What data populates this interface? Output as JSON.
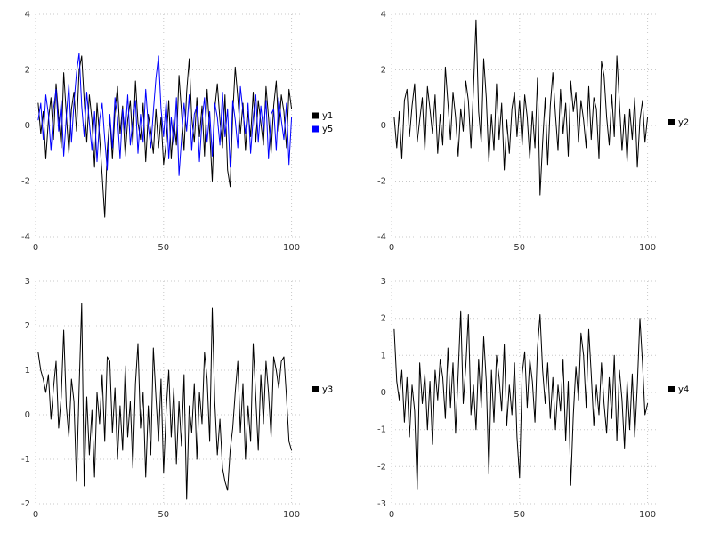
{
  "page": {
    "background": "#ffffff",
    "grid_color": "#c8c8c8",
    "tick_text_color": "#333333"
  },
  "chart_data": [
    {
      "id": "plot-y1-y5",
      "type": "line",
      "x_start": 1,
      "xlim": [
        0,
        105
      ],
      "ylim": [
        -4,
        4
      ],
      "xticks": [
        0,
        50,
        100
      ],
      "yticks": [
        -4,
        -2,
        0,
        2,
        4
      ],
      "grid": true,
      "legend_position": "right",
      "series": [
        {
          "name": "y1",
          "color": "#000000",
          "values": [
            0.8,
            -0.3,
            0.5,
            -1.2,
            0.2,
            1.0,
            -0.5,
            1.5,
            0.3,
            -0.8,
            1.9,
            0.4,
            -1.0,
            0.6,
            1.2,
            -0.2,
            2.0,
            2.5,
            0.9,
            -0.6,
            1.1,
            0.2,
            -1.5,
            0.8,
            -0.4,
            -1.8,
            -3.3,
            -0.9,
            0.3,
            -1.2,
            0.5,
            1.4,
            -0.3,
            0.7,
            -1.1,
            0.2,
            0.9,
            -0.7,
            1.6,
            0.1,
            -0.5,
            0.8,
            -1.3,
            0.4,
            -0.2,
            -1.0,
            0.6,
            -0.8,
            0.3,
            -1.4,
            -0.6,
            0.9,
            -1.2,
            0.2,
            -0.7,
            1.8,
            0.5,
            -0.9,
            1.2,
            2.4,
            0.3,
            -0.6,
            1.0,
            -0.4,
            0.7,
            -1.1,
            1.3,
            -0.2,
            -2.0,
            0.6,
            1.5,
            0.2,
            -0.8,
            1.1,
            -1.6,
            -2.2,
            0.4,
            2.1,
            1.0,
            -0.3,
            0.8,
            -0.9,
            0.5,
            -0.4,
            1.2,
            -0.6,
            0.9,
            0.1,
            -0.7,
            1.4,
            0.3,
            -1.0,
            0.7,
            1.6,
            -0.2,
            1.1,
            0.5,
            -0.8,
            1.3,
            0.6
          ]
        },
        {
          "name": "y5",
          "color": "#0000ff",
          "values": [
            0.2,
            0.8,
            -0.5,
            1.1,
            0.4,
            -0.9,
            0.6,
            1.3,
            -0.2,
            0.9,
            -1.1,
            0.3,
            1.5,
            -0.6,
            0.8,
            1.9,
            2.6,
            0.7,
            -0.4,
            1.2,
            0.1,
            -0.9,
            0.5,
            -1.3,
            0.2,
            0.8,
            -0.5,
            -1.6,
            0.4,
            -0.8,
            1.0,
            0.3,
            -1.2,
            0.6,
            -0.3,
            1.1,
            -0.7,
            0.2,
            0.9,
            -1.0,
            0.4,
            -0.6,
            1.3,
            0.0,
            -0.8,
            0.5,
            1.7,
            2.5,
            0.6,
            -0.4,
            0.9,
            -1.2,
            0.3,
            -0.7,
            1.0,
            -1.8,
            -0.5,
            0.8,
            -0.2,
            1.1,
            -0.9,
            0.4,
            0.7,
            -1.3,
            0.2,
            1.0,
            -0.6,
            0.5,
            -1.1,
            0.8,
            0.3,
            -0.7,
            1.2,
            -0.4,
            0.6,
            -1.5,
            0.9,
            0.2,
            -0.8,
            1.4,
            0.5,
            -0.3,
            0.8,
            -1.0,
            0.3,
            1.1,
            -0.6,
            0.7,
            -0.2,
            0.9,
            -1.2,
            0.4,
            0.6,
            -0.9,
            1.0,
            0.2,
            -0.5,
            0.8,
            -1.4,
            0.3
          ]
        }
      ]
    },
    {
      "id": "plot-y2",
      "type": "line",
      "x_start": 1,
      "xlim": [
        0,
        105
      ],
      "ylim": [
        -4,
        4
      ],
      "xticks": [
        0,
        50,
        100
      ],
      "yticks": [
        -4,
        -2,
        0,
        2,
        4
      ],
      "grid": true,
      "legend_position": "right",
      "series": [
        {
          "name": "y2",
          "color": "#000000",
          "values": [
            0.3,
            -0.8,
            0.5,
            -1.2,
            0.9,
            1.3,
            -0.4,
            0.7,
            1.5,
            -0.6,
            0.2,
            1.0,
            -0.9,
            1.4,
            0.6,
            -0.3,
            1.1,
            -1.0,
            0.4,
            -0.7,
            2.1,
            0.8,
            -0.5,
            1.2,
            0.3,
            -1.1,
            0.6,
            -0.2,
            1.6,
            0.9,
            -0.8,
            1.3,
            3.8,
            0.5,
            -0.6,
            2.4,
            1.0,
            -1.3,
            0.4,
            -0.9,
            1.5,
            -0.5,
            0.8,
            -1.6,
            0.2,
            -1.0,
            0.6,
            1.2,
            -0.4,
            0.9,
            -0.7,
            1.1,
            0.3,
            -1.2,
            0.5,
            -0.8,
            1.7,
            -2.5,
            -0.6,
            1.0,
            -1.4,
            0.7,
            1.9,
            0.4,
            -0.9,
            1.3,
            -0.3,
            0.8,
            -1.1,
            1.6,
            0.5,
            1.2,
            -0.6,
            0.9,
            0.2,
            -0.8,
            1.4,
            -0.5,
            1.0,
            0.6,
            -1.2,
            2.3,
            1.8,
            0.3,
            -0.7,
            1.1,
            -0.4,
            2.5,
            0.8,
            -0.9,
            0.4,
            -1.3,
            0.6,
            -0.5,
            1.0,
            -1.5,
            0.2,
            0.9,
            -0.6,
            0.3
          ]
        }
      ]
    },
    {
      "id": "plot-y3",
      "type": "line",
      "x_start": 1,
      "xlim": [
        0,
        105
      ],
      "ylim": [
        -2,
        3
      ],
      "xticks": [
        0,
        50,
        100
      ],
      "yticks": [
        -2,
        -1,
        0,
        1,
        2,
        3
      ],
      "grid": true,
      "legend_position": "right",
      "series": [
        {
          "name": "y3",
          "color": "#000000",
          "values": [
            1.4,
            1.0,
            0.8,
            0.5,
            0.9,
            -0.1,
            0.6,
            1.2,
            -0.3,
            0.4,
            1.9,
            0.2,
            -0.5,
            0.8,
            0.3,
            -1.5,
            0.6,
            2.5,
            -1.6,
            0.4,
            -0.9,
            0.1,
            -1.4,
            0.5,
            -0.2,
            0.9,
            -0.6,
            1.3,
            1.2,
            -0.4,
            0.6,
            -1.0,
            0.2,
            -0.8,
            1.1,
            -0.5,
            0.3,
            -1.2,
            0.7,
            1.6,
            -0.3,
            0.5,
            -1.4,
            0.2,
            -0.9,
            1.5,
            0.4,
            -0.6,
            0.8,
            -1.3,
            0.1,
            1.0,
            -0.5,
            0.6,
            -1.1,
            0.3,
            -0.7,
            0.9,
            -1.9,
            0.2,
            -0.4,
            0.7,
            -1.0,
            0.5,
            -0.2,
            1.4,
            0.8,
            -0.6,
            2.4,
            0.3,
            -0.9,
            -0.1,
            -1.2,
            -1.5,
            -1.7,
            -0.8,
            -0.3,
            0.5,
            1.2,
            -0.4,
            0.7,
            -1.0,
            0.2,
            -0.6,
            1.6,
            0.4,
            -0.8,
            0.9,
            -0.2,
            1.2,
            0.5,
            -0.5,
            1.3,
            1.0,
            0.6,
            1.2,
            1.3,
            0.4,
            -0.6,
            -0.8
          ]
        }
      ]
    },
    {
      "id": "plot-y4",
      "type": "line",
      "x_start": 1,
      "xlim": [
        0,
        105
      ],
      "ylim": [
        -3,
        3
      ],
      "xticks": [
        0,
        50,
        100
      ],
      "yticks": [
        -3,
        -2,
        -1,
        0,
        1,
        2,
        3
      ],
      "grid": true,
      "legend_position": "right",
      "series": [
        {
          "name": "y4",
          "color": "#000000",
          "values": [
            1.7,
            0.3,
            -0.2,
            0.6,
            -0.8,
            0.4,
            -1.2,
            0.2,
            -0.5,
            -2.6,
            0.8,
            -0.3,
            0.5,
            -1.0,
            0.3,
            -1.4,
            0.6,
            -0.2,
            0.9,
            0.4,
            -0.7,
            1.2,
            -0.4,
            0.8,
            -1.1,
            0.5,
            2.2,
            -0.3,
            0.7,
            2.1,
            -0.6,
            0.2,
            -1.0,
            0.9,
            -0.4,
            1.5,
            0.3,
            -2.2,
            0.6,
            -0.8,
            1.0,
            0.4,
            -0.5,
            1.3,
            -0.9,
            0.2,
            -0.6,
            0.8,
            -1.2,
            -2.3,
            0.5,
            1.1,
            -0.4,
            0.9,
            0.3,
            -0.8,
            1.2,
            2.1,
            0.6,
            -0.3,
            0.8,
            -0.7,
            0.4,
            -1.0,
            0.2,
            -0.5,
            0.9,
            -1.3,
            0.3,
            -2.5,
            -0.6,
            0.7,
            -0.2,
            1.6,
            1.0,
            -0.4,
            1.7,
            0.5,
            -0.9,
            0.2,
            -0.6,
            0.8,
            -0.3,
            -1.1,
            0.4,
            -0.7,
            1.0,
            -1.3,
            0.6,
            -0.2,
            -1.5,
            0.3,
            -1.0,
            0.5,
            -1.2,
            0.2,
            2.0,
            0.8,
            -0.6,
            -0.3
          ]
        }
      ]
    }
  ]
}
